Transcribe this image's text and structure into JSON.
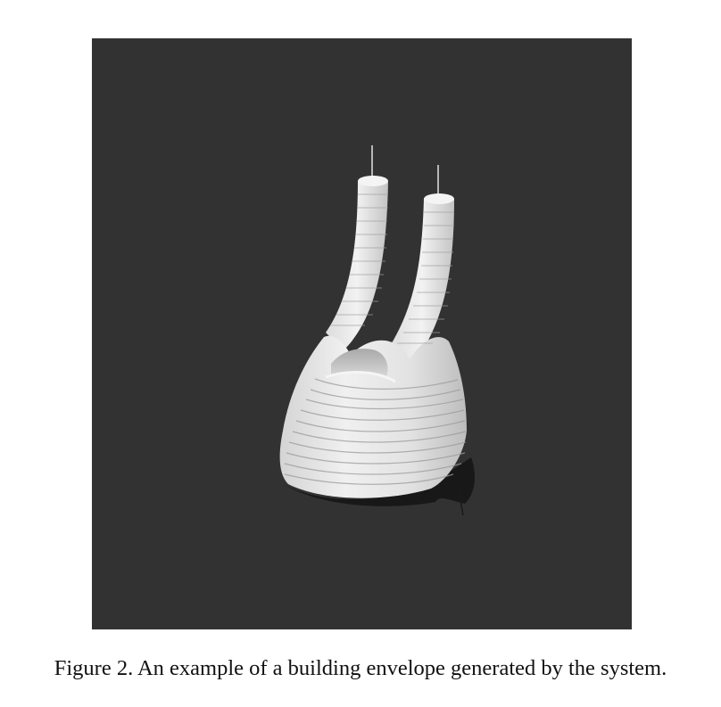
{
  "figure": {
    "background_color": "#323232",
    "render_color": "#e6e6e6",
    "caption": "Figure 2. An example of a building envelope generated by the system."
  }
}
